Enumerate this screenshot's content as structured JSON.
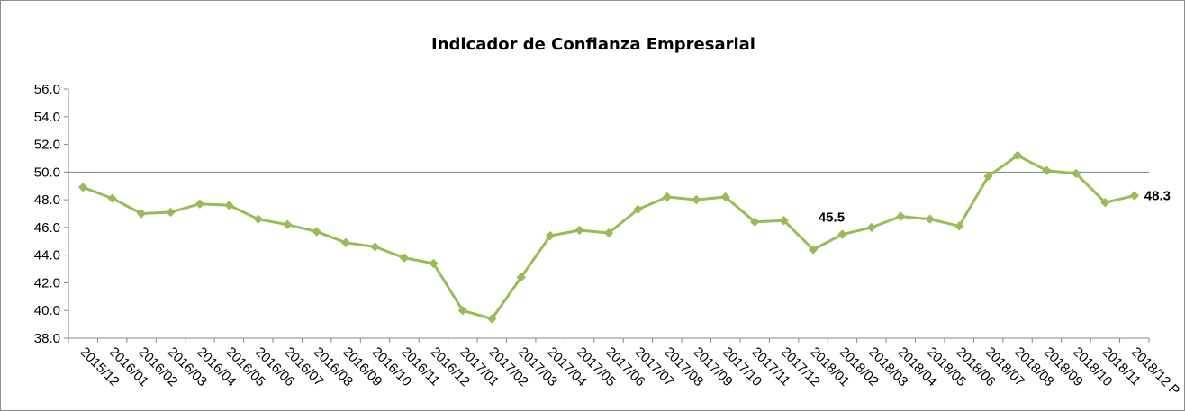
{
  "chart_data": {
    "type": "line",
    "title": "Indicador de Confianza Empresarial",
    "xlabel": "",
    "ylabel": "",
    "ylim": [
      38.0,
      56.0
    ],
    "ytick_step": 2,
    "yticks": [
      "38.0",
      "40.0",
      "42.0",
      "44.0",
      "46.0",
      "48.0",
      "50.0",
      "52.0",
      "54.0",
      "56.0"
    ],
    "reference_line": 50.0,
    "grid": false,
    "legend": "none",
    "categories": [
      "2015/12",
      "2016/01",
      "2016/02",
      "2016/03",
      "2016/04",
      "2016/05",
      "2016/06",
      "2016/07",
      "2016/08",
      "2016/09",
      "2016/10",
      "2016/11",
      "2016/12",
      "2017/01",
      "2017/02",
      "2017/03",
      "2017/04",
      "2017/05",
      "2017/06",
      "2017/07",
      "2017/08",
      "2017/09",
      "2017/10",
      "2017/11",
      "2017/12",
      "2018/01",
      "2018/02",
      "2018/03",
      "2018/04",
      "2018/05",
      "2018/06",
      "2018/07",
      "2018/08",
      "2018/09",
      "2018/10",
      "2018/11",
      "2018/12 P"
    ],
    "series": [
      {
        "color": "#9bbb59",
        "values": [
          48.9,
          48.1,
          47.0,
          47.1,
          47.7,
          47.6,
          46.6,
          46.2,
          45.7,
          44.9,
          44.6,
          43.8,
          43.4,
          40.0,
          39.4,
          42.4,
          45.4,
          45.8,
          45.6,
          47.3,
          48.2,
          48.0,
          48.2,
          46.4,
          46.5,
          44.4,
          45.5,
          46.0,
          46.8,
          46.6,
          46.1,
          49.7,
          51.2,
          50.1,
          49.9,
          47.8,
          48.3
        ]
      }
    ],
    "data_labels": [
      {
        "index": 26,
        "text": "45.5"
      },
      {
        "index": 36,
        "text": "48.3"
      }
    ]
  }
}
